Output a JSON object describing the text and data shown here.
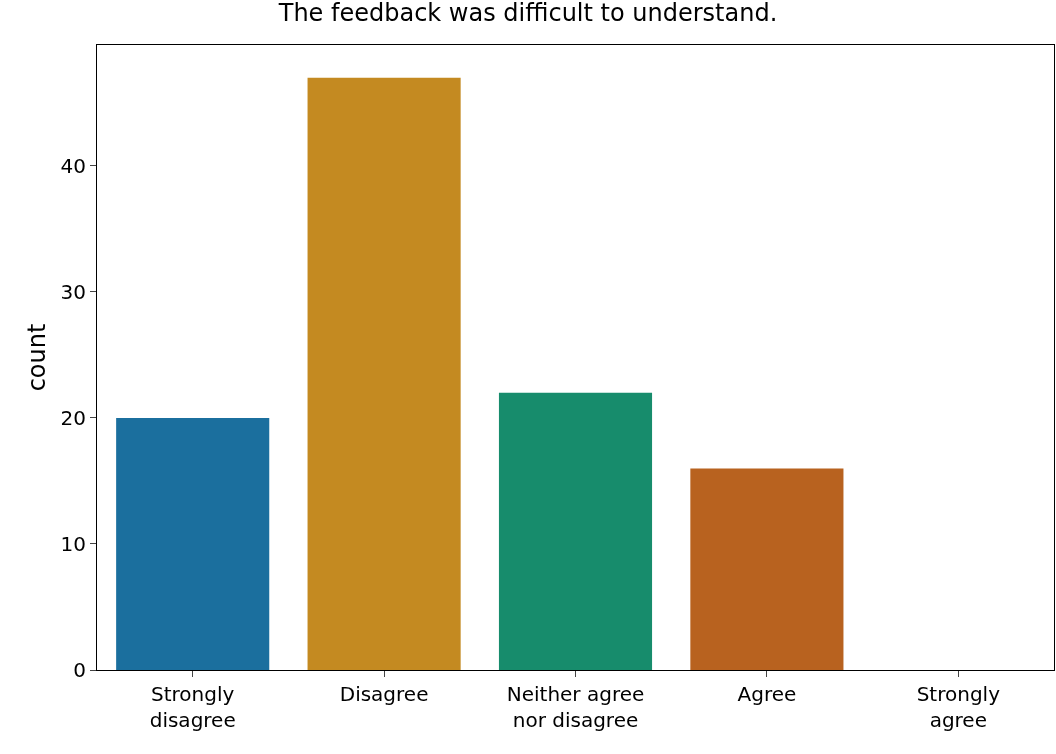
{
  "chart_data": {
    "type": "bar",
    "title": "The feedback was difficult to understand.",
    "ylabel": "count",
    "categories": [
      "Strongly disagree",
      "Disagree",
      "Neither agree nor disagree",
      "Agree",
      "Strongly agree"
    ],
    "values": [
      20,
      47,
      22,
      16,
      0
    ],
    "colors": [
      "#1b6f9e",
      "#c48a21",
      "#178c6c",
      "#b8621f",
      "#b56fa4"
    ],
    "ylim": [
      0,
      49.6
    ],
    "yticks": [
      0,
      10,
      20,
      30,
      40
    ]
  }
}
